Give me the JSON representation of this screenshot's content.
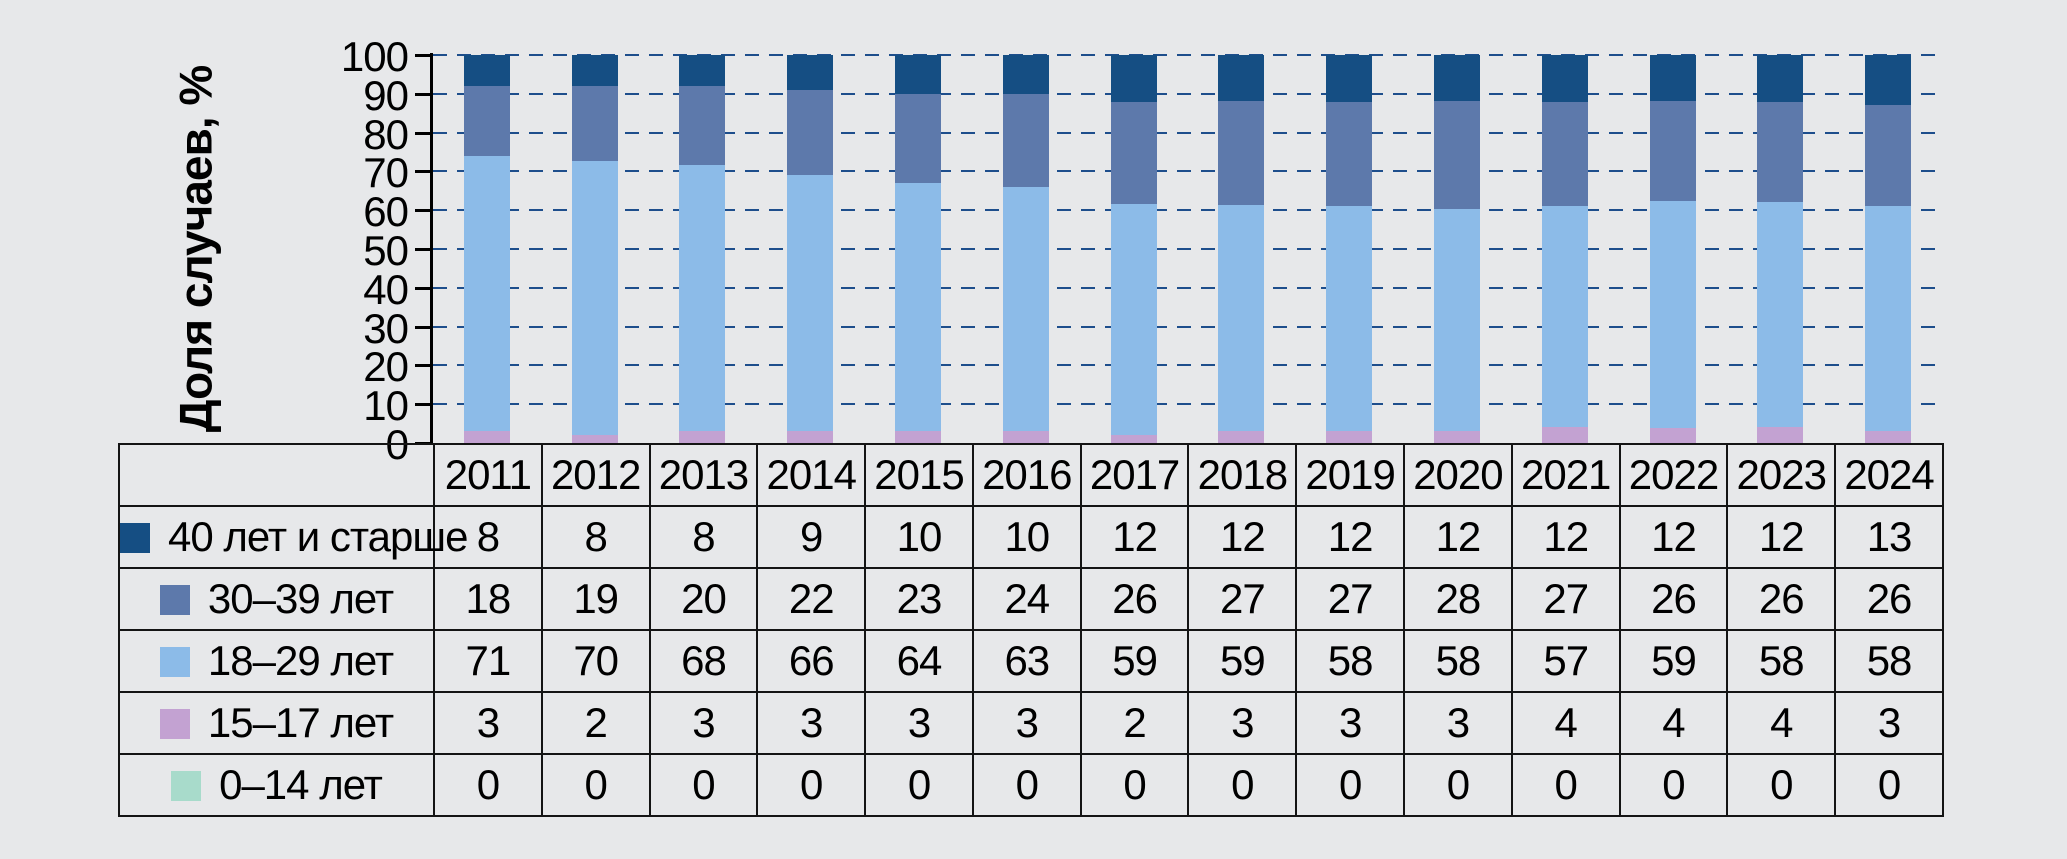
{
  "background_color": "#e7e8ea",
  "axis": {
    "ylabel": "Доля случаев, %",
    "yticks": [
      0,
      10,
      20,
      30,
      40,
      50,
      60,
      70,
      80,
      90,
      100
    ],
    "grid_color": "#1e4e8c",
    "axis_color": "#000000"
  },
  "chart_data": {
    "type": "bar",
    "stacked": true,
    "title": "",
    "xlabel": "",
    "ylabel": "Доля случаев, %",
    "ylim": [
      0,
      100
    ],
    "grid": true,
    "legend_position": "table-left-column",
    "categories": [
      "2011",
      "2012",
      "2013",
      "2014",
      "2015",
      "2016",
      "2017",
      "2018",
      "2019",
      "2020",
      "2021",
      "2022",
      "2023",
      "2024"
    ],
    "series": [
      {
        "name": "40 лет и старше",
        "color": "#154e83",
        "values": [
          8,
          8,
          8,
          9,
          10,
          10,
          12,
          12,
          12,
          12,
          12,
          12,
          12,
          13
        ]
      },
      {
        "name": "30–39 лет",
        "color": "#5d79ab",
        "values": [
          18,
          19,
          20,
          22,
          23,
          24,
          26,
          27,
          27,
          28,
          27,
          26,
          26,
          26
        ]
      },
      {
        "name": "18–29 лет",
        "color": "#8cbbe8",
        "values": [
          71,
          70,
          68,
          66,
          64,
          63,
          59,
          59,
          58,
          58,
          57,
          59,
          58,
          58
        ]
      },
      {
        "name": "15–17 лет",
        "color": "#c3a2d2",
        "values": [
          3,
          2,
          3,
          3,
          3,
          3,
          2,
          3,
          3,
          3,
          4,
          4,
          4,
          3
        ]
      },
      {
        "name": "0–14 лет",
        "color": "#a8dbcb",
        "values": [
          0,
          0,
          0,
          0,
          0,
          0,
          0,
          0,
          0,
          0,
          0,
          0,
          0,
          0
        ]
      }
    ]
  }
}
